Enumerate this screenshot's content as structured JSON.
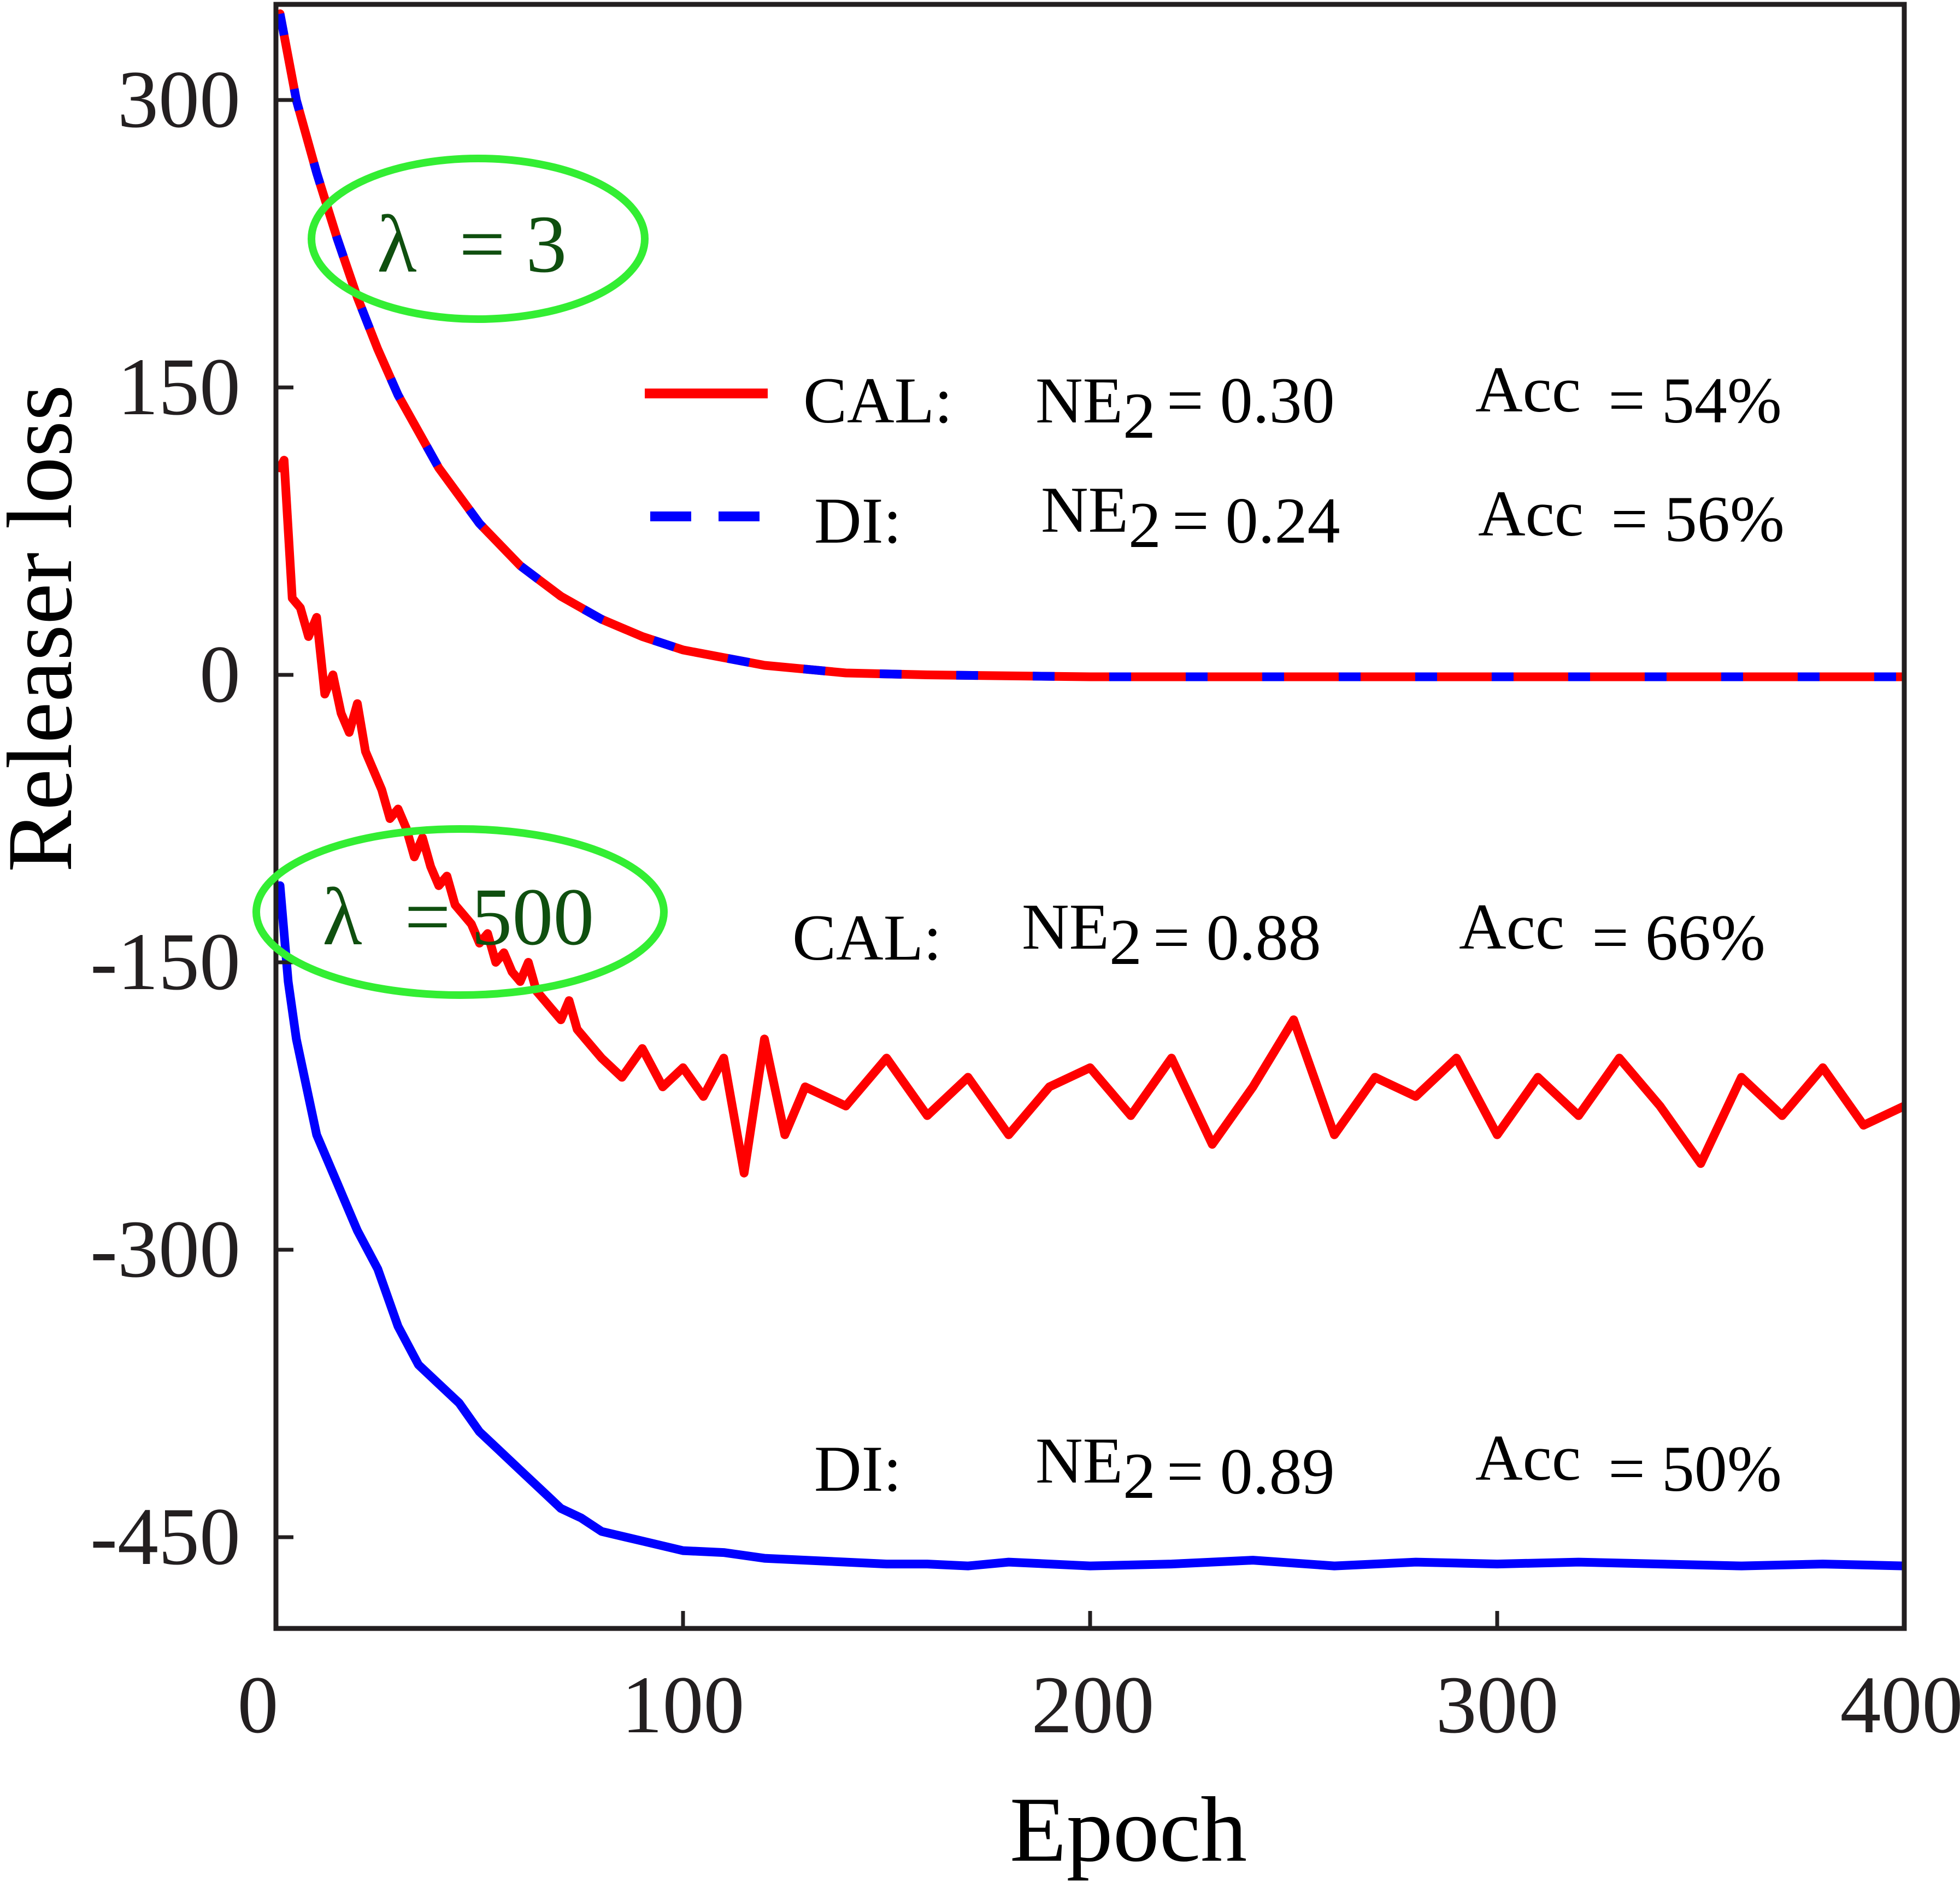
{
  "chart_data": {
    "type": "line",
    "xlabel": "Epoch",
    "ylabel": "Releaser loss",
    "xlim": [
      0,
      400
    ],
    "ylim": [
      -500,
      350
    ],
    "xticks": [
      "0",
      "100",
      "200",
      "300",
      "400"
    ],
    "yticks": [
      "300",
      "150",
      "0",
      "-150",
      "-300",
      "-450"
    ],
    "grid": false,
    "legend_position": "right",
    "series": [
      {
        "name": "CAL",
        "group": "λ = 3",
        "color": "#ff0000",
        "style": "solid",
        "x": [
          1,
          5,
          10,
          15,
          20,
          25,
          30,
          40,
          50,
          60,
          70,
          80,
          90,
          100,
          120,
          140,
          160,
          200,
          250,
          300,
          350,
          400
        ],
        "y": [
          345,
          300,
          262,
          228,
          197,
          170,
          146,
          108,
          79,
          57,
          41,
          29,
          20,
          13,
          5,
          1,
          0,
          -1,
          -1,
          -1,
          -1,
          -1
        ]
      },
      {
        "name": "DI",
        "group": "λ = 3",
        "color": "#0000ff",
        "style": "dashed",
        "x": [
          1,
          5,
          10,
          15,
          20,
          25,
          30,
          40,
          50,
          60,
          70,
          80,
          90,
          100,
          120,
          140,
          160,
          200,
          250,
          300,
          350,
          400
        ],
        "y": [
          345,
          300,
          262,
          228,
          197,
          170,
          146,
          108,
          79,
          57,
          41,
          29,
          20,
          13,
          5,
          1,
          0,
          -1,
          -1,
          -1,
          -1,
          -1
        ]
      },
      {
        "name": "CAL",
        "group": "λ = 500",
        "color": "#ff0000",
        "style": "solid",
        "x": [
          1,
          2,
          4,
          6,
          8,
          10,
          12,
          14,
          16,
          18,
          20,
          22,
          24,
          26,
          28,
          30,
          32,
          34,
          36,
          38,
          40,
          42,
          44,
          46,
          48,
          50,
          52,
          54,
          56,
          58,
          60,
          62,
          64,
          66,
          68,
          70,
          72,
          74,
          76,
          78,
          80,
          85,
          90,
          95,
          100,
          105,
          110,
          115,
          120,
          125,
          130,
          140,
          150,
          160,
          170,
          180,
          190,
          200,
          210,
          220,
          230,
          240,
          250,
          260,
          270,
          280,
          290,
          300,
          310,
          320,
          330,
          340,
          350,
          360,
          370,
          380,
          390,
          400
        ],
        "y": [
          108,
          112,
          40,
          35,
          20,
          30,
          -10,
          0,
          -20,
          -30,
          -15,
          -40,
          -50,
          -60,
          -75,
          -70,
          -80,
          -95,
          -85,
          -100,
          -110,
          -105,
          -120,
          -125,
          -130,
          -140,
          -135,
          -150,
          -145,
          -155,
          -160,
          -150,
          -165,
          -170,
          -175,
          -180,
          -170,
          -185,
          -190,
          -195,
          -200,
          -210,
          -195,
          -215,
          -205,
          -220,
          -200,
          -260,
          -190,
          -240,
          -215,
          -225,
          -200,
          -230,
          -210,
          -240,
          -215,
          -205,
          -230,
          -200,
          -245,
          -215,
          -180,
          -240,
          -210,
          -220,
          -200,
          -240,
          -210,
          -230,
          -200,
          -225,
          -255,
          -210,
          -230,
          -205,
          -235,
          -225
        ]
      },
      {
        "name": "DI",
        "group": "λ = 500",
        "color": "#0000ff",
        "style": "solid",
        "x": [
          1,
          3,
          5,
          8,
          10,
          13,
          15,
          18,
          20,
          25,
          30,
          35,
          40,
          45,
          50,
          55,
          60,
          65,
          70,
          75,
          80,
          90,
          100,
          110,
          120,
          130,
          140,
          150,
          160,
          170,
          180,
          200,
          220,
          240,
          260,
          280,
          300,
          320,
          340,
          360,
          380,
          400
        ],
        "y": [
          -110,
          -160,
          -190,
          -220,
          -240,
          -255,
          -265,
          -280,
          -290,
          -310,
          -340,
          -360,
          -370,
          -380,
          -395,
          -405,
          -415,
          -425,
          -435,
          -440,
          -447,
          -452,
          -457,
          -458,
          -461,
          -462,
          -463,
          -464,
          -464,
          -465,
          -463,
          -465,
          -464,
          -462,
          -465,
          -463,
          -464,
          -463,
          -464,
          -465,
          -464,
          -465
        ]
      }
    ],
    "annotations": [
      {
        "lambda": "λ",
        "value": "= 3"
      },
      {
        "lambda": "λ",
        "value": "= 500"
      }
    ],
    "legend_upper": [
      {
        "label": "CAL:",
        "ne_label": "NE",
        "ne_sub": "2",
        "ne_value": "= 0.30",
        "acc_label": "Acc",
        "acc_value": "= 54%"
      },
      {
        "label": "DI:",
        "ne_label": "NE",
        "ne_sub": "2",
        "ne_value": "= 0.24",
        "acc_label": "Acc",
        "acc_value": "= 56%"
      }
    ],
    "labels_lower": [
      {
        "label": "CAL:",
        "ne_label": "NE",
        "ne_sub": "2",
        "ne_value": "= 0.88",
        "acc_label": "Acc",
        "acc_value": "= 66%"
      },
      {
        "label": "DI:",
        "ne_label": "NE",
        "ne_sub": "2",
        "ne_value": "= 0.89",
        "acc_label": "Acc",
        "acc_value": "= 50%"
      }
    ],
    "colors": {
      "cal": "#ff0000",
      "di": "#0000ff",
      "ellipse": "#33ee33",
      "lambda_text": "#0f4f0f",
      "axis": "#231f20"
    }
  }
}
